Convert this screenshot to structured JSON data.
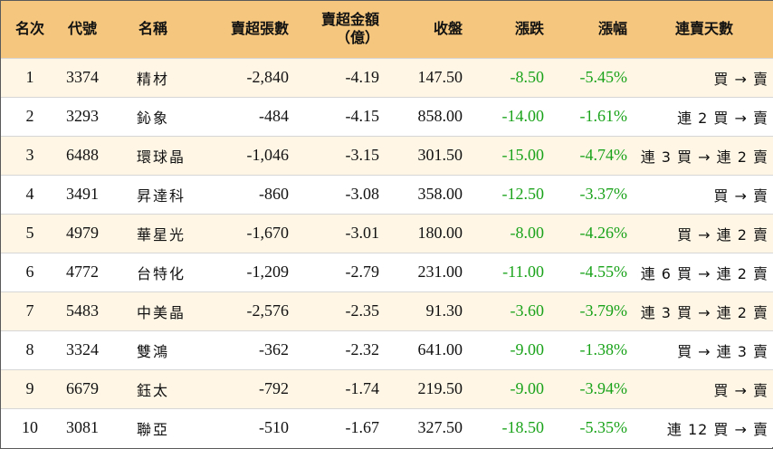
{
  "headers": {
    "rank": "名次",
    "code": "代號",
    "name": "名稱",
    "net_sell_volume": "賣超張數",
    "net_sell_amount_line1": "賣超金額",
    "net_sell_amount_line2": "（億）",
    "close": "收盤",
    "change": "漲跌",
    "change_pct": "漲幅",
    "streak": "連賣天數"
  },
  "colors": {
    "header_bg": "#f5c77e",
    "odd_row_bg": "#fff6e6",
    "negative_text": "#1aa31a"
  },
  "rows": [
    {
      "rank": "1",
      "code": "3374",
      "name": "精材",
      "volume": "-2,840",
      "amount": "-4.19",
      "close": "147.50",
      "change": "-8.50",
      "pct": "-5.45%",
      "streak": "買 → 賣"
    },
    {
      "rank": "2",
      "code": "3293",
      "name": "鈊象",
      "volume": "-484",
      "amount": "-4.15",
      "close": "858.00",
      "change": "-14.00",
      "pct": "-1.61%",
      "streak": "連 2 買 → 賣"
    },
    {
      "rank": "3",
      "code": "6488",
      "name": "環球晶",
      "volume": "-1,046",
      "amount": "-3.15",
      "close": "301.50",
      "change": "-15.00",
      "pct": "-4.74%",
      "streak": "連 3 買 → 連 2 賣"
    },
    {
      "rank": "4",
      "code": "3491",
      "name": "昇達科",
      "volume": "-860",
      "amount": "-3.08",
      "close": "358.00",
      "change": "-12.50",
      "pct": "-3.37%",
      "streak": "買 → 賣"
    },
    {
      "rank": "5",
      "code": "4979",
      "name": "華星光",
      "volume": "-1,670",
      "amount": "-3.01",
      "close": "180.00",
      "change": "-8.00",
      "pct": "-4.26%",
      "streak": "買 → 連 2 賣"
    },
    {
      "rank": "6",
      "code": "4772",
      "name": "台特化",
      "volume": "-1,209",
      "amount": "-2.79",
      "close": "231.00",
      "change": "-11.00",
      "pct": "-4.55%",
      "streak": "連 6 買 → 連 2 賣"
    },
    {
      "rank": "7",
      "code": "5483",
      "name": "中美晶",
      "volume": "-2,576",
      "amount": "-2.35",
      "close": "91.30",
      "change": "-3.60",
      "pct": "-3.79%",
      "streak": "連 3 買 → 連 2 賣"
    },
    {
      "rank": "8",
      "code": "3324",
      "name": "雙鴻",
      "volume": "-362",
      "amount": "-2.32",
      "close": "641.00",
      "change": "-9.00",
      "pct": "-1.38%",
      "streak": "買 → 連 3 賣"
    },
    {
      "rank": "9",
      "code": "6679",
      "name": "鈺太",
      "volume": "-792",
      "amount": "-1.74",
      "close": "219.50",
      "change": "-9.00",
      "pct": "-3.94%",
      "streak": "買 → 賣"
    },
    {
      "rank": "10",
      "code": "3081",
      "name": "聯亞",
      "volume": "-510",
      "amount": "-1.67",
      "close": "327.50",
      "change": "-18.50",
      "pct": "-5.35%",
      "streak": "連 12 買 → 賣"
    }
  ]
}
